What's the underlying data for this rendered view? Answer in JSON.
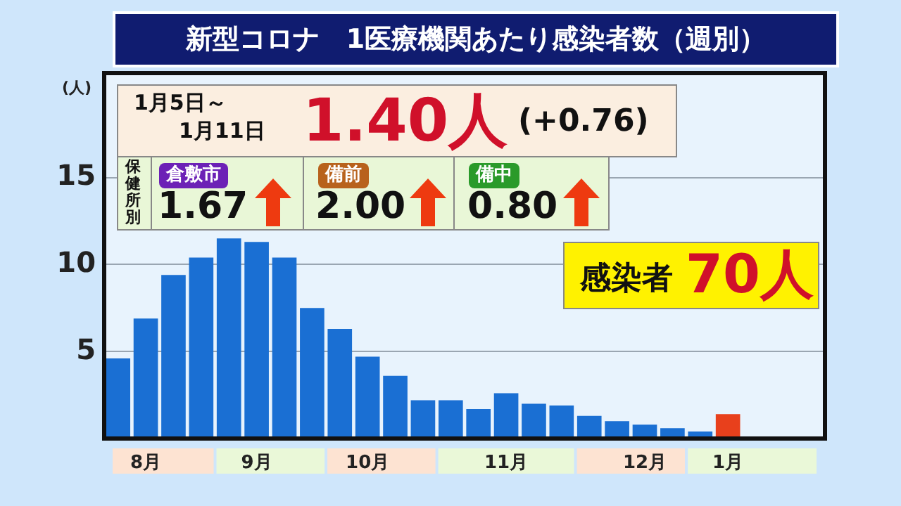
{
  "chart_data": {
    "type": "bar",
    "title": "新型コロナ　1医療機関あたり感染者数（週別）",
    "ylabel": "(人)",
    "categories": [
      null,
      "8月",
      null,
      null,
      null,
      "9月",
      null,
      null,
      null,
      "10月",
      null,
      null,
      null,
      null,
      "11月",
      null,
      null,
      null,
      null,
      "12月",
      null,
      null,
      "1月",
      null,
      null,
      null
    ],
    "values": [
      4.6,
      6.9,
      9.4,
      10.4,
      11.5,
      11.3,
      10.4,
      7.5,
      6.3,
      4.7,
      3.6,
      2.2,
      2.2,
      1.7,
      2.6,
      2.0,
      1.9,
      1.3,
      1.0,
      0.8,
      0.6,
      0.4,
      1.4,
      null,
      null,
      null
    ],
    "colors": [
      "#1a6fd3",
      "#1a6fd3",
      "#1a6fd3",
      "#1a6fd3",
      "#1a6fd3",
      "#1a6fd3",
      "#1a6fd3",
      "#1a6fd3",
      "#1a6fd3",
      "#1a6fd3",
      "#1a6fd3",
      "#1a6fd3",
      "#1a6fd3",
      "#1a6fd3",
      "#1a6fd3",
      "#1a6fd3",
      "#1a6fd3",
      "#1a6fd3",
      "#1a6fd3",
      "#1a6fd3",
      "#1a6fd3",
      "#1a6fd3",
      "#e8401c",
      "#1a6fd3",
      "#1a6fd3",
      "#1a6fd3"
    ],
    "ylim": [
      0,
      21
    ],
    "yticks": [
      5,
      10,
      15
    ],
    "grid": "y",
    "legend": false,
    "annotations": [
      "1月5日～",
      "1月11日",
      "1.40人",
      "(+0.76)",
      "保健所別",
      "倉敷市",
      "1.67",
      "備前",
      "2.00",
      "備中",
      "0.80",
      "感染者",
      "70人"
    ]
  }
}
